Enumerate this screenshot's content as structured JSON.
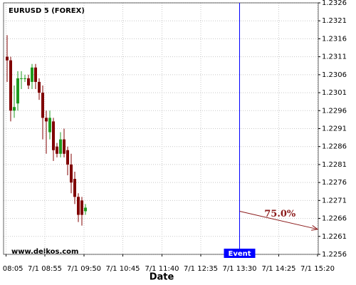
{
  "chart_data": {
    "type": "candlestick",
    "title": "EURUSD 5 (FOREX)",
    "x_label": "Date",
    "watermark": "www.delkos.com",
    "x": [
      0,
      1,
      2,
      3,
      4,
      5,
      6,
      7,
      8,
      9,
      10,
      11,
      12,
      13,
      14,
      15,
      16,
      17,
      18,
      19,
      20,
      21,
      22
    ],
    "open": [
      1.2311,
      1.231,
      1.2296,
      1.2298,
      1.2305,
      1.2305,
      1.2305,
      1.2304,
      1.2308,
      1.2304,
      1.2301,
      1.2294,
      1.229,
      1.2293,
      1.2286,
      1.2284,
      1.2288,
      1.2285,
      1.2281,
      1.2277,
      1.2272,
      1.2271,
      1.2268
    ],
    "high": [
      1.2317,
      1.2311,
      1.2303,
      1.2307,
      1.2307,
      1.2306,
      1.2306,
      1.2309,
      1.2309,
      1.2305,
      1.2303,
      1.2296,
      1.2296,
      1.2294,
      1.2287,
      1.229,
      1.2291,
      1.2286,
      1.2284,
      1.2279,
      1.2273,
      1.2272,
      1.227
    ],
    "low": [
      1.2304,
      1.2293,
      1.2294,
      1.2296,
      1.2302,
      1.2304,
      1.2302,
      1.2302,
      1.2302,
      1.2299,
      1.2288,
      1.2284,
      1.2288,
      1.2282,
      1.2283,
      1.2283,
      1.2283,
      1.2278,
      1.2273,
      1.227,
      1.2265,
      1.2264,
      1.2267
    ],
    "close": [
      1.231,
      1.2296,
      1.2297,
      1.2305,
      1.2305,
      1.2305,
      1.2303,
      1.2308,
      1.2304,
      1.2301,
      1.2294,
      1.2293,
      1.2294,
      1.2285,
      1.2284,
      1.2288,
      1.2284,
      1.2281,
      1.2276,
      1.2272,
      1.2267,
      1.2267,
      1.2269
    ],
    "up_color": "#1f9a1f",
    "down_color": "#800000",
    "xlim": [
      -1,
      87.4
    ],
    "ylim": [
      1.2256,
      1.2326
    ],
    "yticks": [
      1.2256,
      1.2261,
      1.2266,
      1.2271,
      1.2276,
      1.2281,
      1.2286,
      1.2291,
      1.2296,
      1.2301,
      1.2306,
      1.2311,
      1.2316,
      1.2321,
      1.2326
    ],
    "xticks": [
      {
        "value": -0.3,
        "label": "7/1 08:05"
      },
      {
        "value": 10.6,
        "label": "7/1 08:55"
      },
      {
        "value": 21.6,
        "label": "7/1 09:50"
      },
      {
        "value": 32.5,
        "label": "7/1 10:45"
      },
      {
        "value": 43.5,
        "label": "7/1 11:40"
      },
      {
        "value": 54.4,
        "label": "7/1 12:35"
      },
      {
        "value": 65.3,
        "label": "7/1 13:30"
      },
      {
        "value": 76.3,
        "label": "7/1 14:25"
      },
      {
        "value": 87.2,
        "label": "7/1 15:20"
      }
    ],
    "grid": true,
    "event": {
      "label": "Event",
      "x": 65.3,
      "color": "#0000ff"
    },
    "arrow": {
      "label": "75.0%",
      "x": [
        65.3,
        87.2
      ],
      "y": [
        1.2268,
        1.2263
      ],
      "color": "#8b1a1a"
    }
  }
}
